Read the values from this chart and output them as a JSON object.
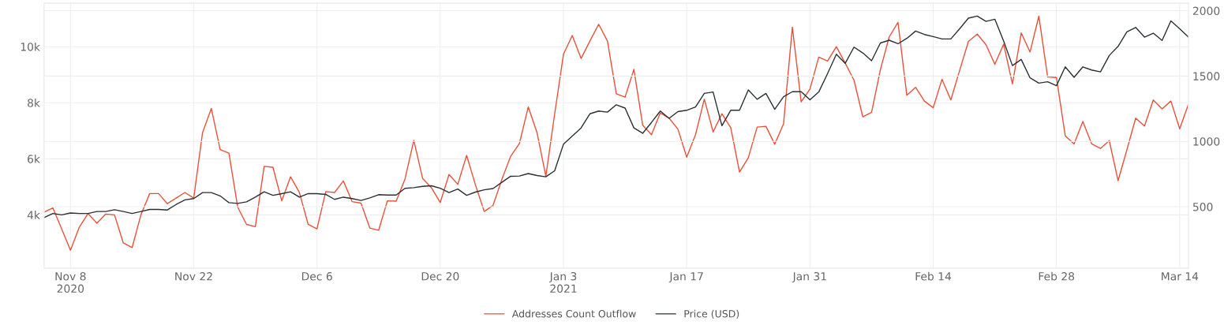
{
  "chart_data": {
    "type": "line",
    "x": [
      "2020-11-05",
      "2020-11-06",
      "2020-11-07",
      "2020-11-08",
      "2020-11-09",
      "2020-11-10",
      "2020-11-11",
      "2020-11-12",
      "2020-11-13",
      "2020-11-14",
      "2020-11-15",
      "2020-11-16",
      "2020-11-17",
      "2020-11-18",
      "2020-11-19",
      "2020-11-20",
      "2020-11-21",
      "2020-11-22",
      "2020-11-23",
      "2020-11-24",
      "2020-11-25",
      "2020-11-26",
      "2020-11-27",
      "2020-11-28",
      "2020-11-29",
      "2020-11-30",
      "2020-12-01",
      "2020-12-02",
      "2020-12-03",
      "2020-12-04",
      "2020-12-05",
      "2020-12-06",
      "2020-12-07",
      "2020-12-08",
      "2020-12-09",
      "2020-12-10",
      "2020-12-11",
      "2020-12-12",
      "2020-12-13",
      "2020-12-14",
      "2020-12-15",
      "2020-12-16",
      "2020-12-17",
      "2020-12-18",
      "2020-12-19",
      "2020-12-20",
      "2020-12-21",
      "2020-12-22",
      "2020-12-23",
      "2020-12-24",
      "2020-12-25",
      "2020-12-26",
      "2020-12-27",
      "2020-12-28",
      "2020-12-29",
      "2020-12-30",
      "2020-12-31",
      "2021-01-01",
      "2021-01-02",
      "2021-01-03",
      "2021-01-04",
      "2021-01-05",
      "2021-01-06",
      "2021-01-07",
      "2021-01-08",
      "2021-01-09",
      "2021-01-10",
      "2021-01-11",
      "2021-01-12",
      "2021-01-13",
      "2021-01-14",
      "2021-01-15",
      "2021-01-16",
      "2021-01-17",
      "2021-01-18",
      "2021-01-19",
      "2021-01-20",
      "2021-01-21",
      "2021-01-22",
      "2021-01-23",
      "2021-01-24",
      "2021-01-25",
      "2021-01-26",
      "2021-01-27",
      "2021-01-28",
      "2021-01-29",
      "2021-01-30",
      "2021-01-31",
      "2021-02-01",
      "2021-02-02",
      "2021-02-03",
      "2021-02-04",
      "2021-02-05",
      "2021-02-06",
      "2021-02-07",
      "2021-02-08",
      "2021-02-09",
      "2021-02-10",
      "2021-02-11",
      "2021-02-12",
      "2021-02-13",
      "2021-02-14",
      "2021-02-15",
      "2021-02-16",
      "2021-02-17",
      "2021-02-18",
      "2021-02-19",
      "2021-02-20",
      "2021-02-21",
      "2021-02-22",
      "2021-02-23",
      "2021-02-24",
      "2021-02-25",
      "2021-02-26",
      "2021-02-27",
      "2021-02-28",
      "2021-03-01",
      "2021-03-02",
      "2021-03-03",
      "2021-03-04",
      "2021-03-05",
      "2021-03-06",
      "2021-03-07",
      "2021-03-08",
      "2021-03-09",
      "2021-03-10",
      "2021-03-11",
      "2021-03-12",
      "2021-03-13",
      "2021-03-14",
      "2021-03-15"
    ],
    "series": [
      {
        "name": "Addresses Count Outflow",
        "color": "#e8503a",
        "values": [
          4100,
          4250,
          3500,
          2740,
          3560,
          4050,
          3700,
          4030,
          4000,
          3000,
          2830,
          4000,
          4760,
          4760,
          4400,
          4600,
          4800,
          4600,
          6930,
          7800,
          6330,
          6200,
          4270,
          3660,
          3580,
          5730,
          5700,
          4500,
          5360,
          4800,
          3660,
          3500,
          4830,
          4800,
          5210,
          4470,
          4420,
          3530,
          3450,
          4500,
          4490,
          5280,
          6660,
          5300,
          4970,
          4440,
          5440,
          5090,
          6120,
          5070,
          4120,
          4340,
          5260,
          6090,
          6550,
          7850,
          6930,
          5380,
          7600,
          9730,
          10400,
          9580,
          10200,
          10800,
          10200,
          8320,
          8200,
          9190,
          7200,
          6860,
          7640,
          7450,
          7060,
          6060,
          6860,
          8130,
          6960,
          7610,
          7110,
          5530,
          6040,
          7130,
          7160,
          6520,
          7250,
          10700,
          8030,
          8490,
          9630,
          9490,
          10000,
          9420,
          8810,
          7500,
          7660,
          9180,
          10350,
          10870,
          8270,
          8550,
          8060,
          7820,
          8840,
          8100,
          9150,
          10190,
          10450,
          10070,
          9370,
          10090,
          8670,
          10490,
          9810,
          11090,
          8920,
          8900,
          6820,
          6530,
          7330,
          6530,
          6370,
          6650,
          5220,
          6320,
          7450,
          7170,
          8100,
          7780,
          8060,
          7070,
          7950
        ]
      },
      {
        "name": "Price (USD)",
        "color": "#2b2f33",
        "axis": "y2",
        "values": [
          417,
          448,
          438,
          452,
          448,
          448,
          463,
          463,
          477,
          463,
          448,
          463,
          479,
          479,
          475,
          517,
          552,
          562,
          608,
          608,
          583,
          531,
          525,
          537,
          573,
          614,
          587,
          600,
          614,
          573,
          600,
          600,
          594,
          556,
          573,
          562,
          548,
          567,
          592,
          589,
          589,
          641,
          646,
          656,
          660,
          641,
          608,
          635,
          587,
          612,
          629,
          639,
          687,
          733,
          735,
          754,
          739,
          729,
          775,
          978,
          1041,
          1103,
          1211,
          1232,
          1224,
          1280,
          1255,
          1103,
          1062,
          1145,
          1232,
          1176,
          1228,
          1238,
          1263,
          1367,
          1378,
          1120,
          1238,
          1238,
          1394,
          1322,
          1367,
          1245,
          1342,
          1380,
          1380,
          1318,
          1378,
          1519,
          1667,
          1597,
          1721,
          1677,
          1617,
          1753,
          1774,
          1747,
          1788,
          1844,
          1818,
          1802,
          1784,
          1784,
          1862,
          1943,
          1959,
          1918,
          1935,
          1768,
          1580,
          1627,
          1486,
          1446,
          1456,
          1426,
          1570,
          1490,
          1570,
          1546,
          1532,
          1657,
          1727,
          1838,
          1872,
          1798,
          1828,
          1772,
          1922,
          1862,
          1798
        ]
      }
    ],
    "xlim": [
      "2020-11-05",
      "2021-03-15"
    ],
    "xticks": [
      {
        "value": "2020-11-08",
        "label": "Nov 8\n2020"
      },
      {
        "value": "2020-11-22",
        "label": "Nov 22"
      },
      {
        "value": "2020-12-06",
        "label": "Dec 6"
      },
      {
        "value": "2020-12-20",
        "label": "Dec 20"
      },
      {
        "value": "2021-01-03",
        "label": "Jan 3\n2021"
      },
      {
        "value": "2021-01-17",
        "label": "Jan 17"
      },
      {
        "value": "2021-01-31",
        "label": "Jan 31"
      },
      {
        "value": "2021-02-14",
        "label": "Feb 14"
      },
      {
        "value": "2021-02-28",
        "label": "Feb 28"
      },
      {
        "value": "2021-03-14",
        "label": "Mar 14"
      }
    ],
    "ylim": [
      2100,
      11550
    ],
    "yticks": [
      {
        "value": 4000,
        "label": "4k"
      },
      {
        "value": 6000,
        "label": "6k"
      },
      {
        "value": 8000,
        "label": "8k"
      },
      {
        "value": 10000,
        "label": "10k"
      }
    ],
    "y2lim": [
      30,
      2057
    ],
    "y2ticks": [
      500,
      1000,
      1500,
      2000
    ],
    "grid": true,
    "legend": "bottom"
  }
}
